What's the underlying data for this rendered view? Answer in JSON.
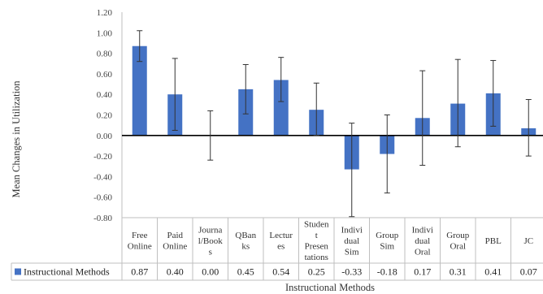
{
  "chart_data": {
    "type": "bar",
    "title": "",
    "xlabel": "Instructional Methods",
    "ylabel": "Mean Changes in Utilization",
    "ylim": [
      -0.8,
      1.2
    ],
    "yticks": [
      "1.20",
      "1.00",
      "0.80",
      "0.60",
      "0.40",
      "0.20",
      "0.00",
      "-0.20",
      "-0.40",
      "-0.60",
      "-0.80"
    ],
    "categories": [
      [
        "Free",
        "Online"
      ],
      [
        "Paid",
        "Online"
      ],
      [
        "Journa",
        "l/Book",
        "s"
      ],
      [
        "QBan",
        "ks"
      ],
      [
        "Lectur",
        "es"
      ],
      [
        "Studen",
        "t",
        "Presen",
        "tations"
      ],
      [
        "Indivi",
        "dual",
        "Sim"
      ],
      [
        "Group",
        "Sim"
      ],
      [
        "Indivi",
        "dual",
        "Oral"
      ],
      [
        "Group",
        "Oral"
      ],
      [
        "PBL"
      ],
      [
        "JC"
      ]
    ],
    "series": [
      {
        "name": "Instructional Methods",
        "values": [
          0.87,
          0.4,
          0.0,
          0.45,
          0.54,
          0.25,
          -0.33,
          -0.18,
          0.17,
          0.31,
          0.41,
          0.07
        ],
        "value_labels": [
          "0.87",
          "0.40",
          "0.00",
          "0.45",
          "0.54",
          "0.25",
          "-0.33",
          "-0.18",
          "0.17",
          "0.31",
          "0.41",
          "0.07"
        ],
        "error_low": [
          0.72,
          0.05,
          -0.24,
          0.21,
          0.33,
          0.0,
          -0.79,
          -0.56,
          -0.29,
          -0.11,
          0.09,
          -0.2
        ],
        "error_high": [
          1.02,
          0.75,
          0.24,
          0.69,
          0.76,
          0.51,
          0.12,
          0.2,
          0.63,
          0.74,
          0.73,
          0.35
        ],
        "color": "#4472C4"
      }
    ],
    "grid": false,
    "legend": "data-table-left"
  }
}
